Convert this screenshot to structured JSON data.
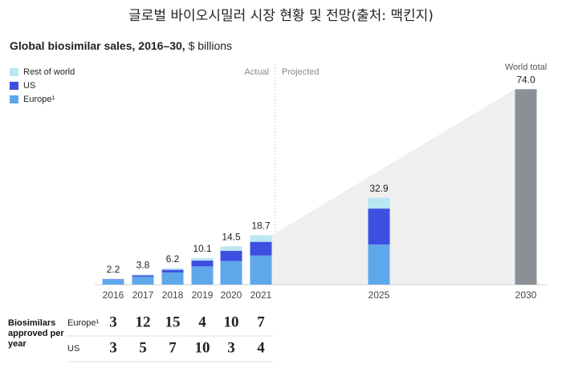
{
  "page_title": "글로벌 바이오시밀러 시장 현황 및 전망(출처: 맥킨지)",
  "chart_data": {
    "type": "bar",
    "stacked": true,
    "title": "Global biosimilar sales, 2016–30,",
    "unit": "$ billions",
    "categories": [
      "2016",
      "2017",
      "2018",
      "2019",
      "2020",
      "2021",
      "2025",
      "2030"
    ],
    "series": [
      {
        "name": "Europe¹",
        "color": "#5ea8ea",
        "values": [
          1.8,
          3.0,
          4.6,
          6.9,
          8.9,
          11.0,
          15.2,
          null
        ]
      },
      {
        "name": "US",
        "color": "#3d4fe0",
        "values": [
          0.2,
          0.5,
          1.0,
          2.2,
          3.9,
          5.2,
          13.6,
          null
        ]
      },
      {
        "name": "Rest of world",
        "color": "#b9e6f3",
        "values": [
          0.2,
          0.3,
          0.6,
          1.0,
          1.7,
          2.5,
          4.1,
          null
        ]
      }
    ],
    "total": {
      "name": "World total",
      "color": "#8a9096",
      "values": [
        2.2,
        3.8,
        6.2,
        10.1,
        14.5,
        18.7,
        32.9,
        74.0
      ],
      "value_labels": [
        "2.2",
        "3.8",
        "6.2",
        "10.1",
        "14.5",
        "18.7",
        "32.9",
        "74.0"
      ]
    },
    "annotations": [
      "Actual",
      "Projected"
    ],
    "ylim": [
      0,
      75
    ]
  },
  "approvals": {
    "title": "Biosimilars approved per year",
    "categories": [
      "2016",
      "2017",
      "2018",
      "2019",
      "2020",
      "2021"
    ],
    "rows": [
      {
        "name": "Europe¹",
        "values": [
          3,
          12,
          15,
          4,
          10,
          7
        ]
      },
      {
        "name": "US",
        "values": [
          3,
          5,
          7,
          10,
          3,
          4
        ]
      }
    ]
  }
}
